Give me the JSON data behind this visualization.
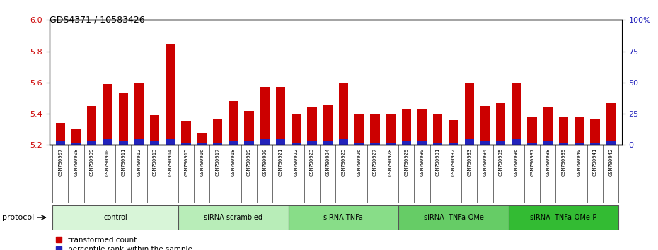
{
  "title": "GDS4371 / 10583426",
  "samples": [
    "GSM790907",
    "GSM790908",
    "GSM790909",
    "GSM790910",
    "GSM790911",
    "GSM790912",
    "GSM790913",
    "GSM790914",
    "GSM790915",
    "GSM790916",
    "GSM790917",
    "GSM790918",
    "GSM790919",
    "GSM790920",
    "GSM790921",
    "GSM790922",
    "GSM790923",
    "GSM790924",
    "GSM790925",
    "GSM790926",
    "GSM790927",
    "GSM790928",
    "GSM790929",
    "GSM790930",
    "GSM790931",
    "GSM790932",
    "GSM790933",
    "GSM790934",
    "GSM790935",
    "GSM790936",
    "GSM790937",
    "GSM790938",
    "GSM790939",
    "GSM790940",
    "GSM790941",
    "GSM790942"
  ],
  "red_values": [
    5.34,
    5.3,
    5.45,
    5.59,
    5.53,
    5.6,
    5.39,
    5.85,
    5.35,
    5.28,
    5.37,
    5.48,
    5.42,
    5.57,
    5.57,
    5.4,
    5.44,
    5.46,
    5.6,
    5.4,
    5.4,
    5.4,
    5.43,
    5.43,
    5.4,
    5.36,
    5.6,
    5.45,
    5.47,
    5.6,
    5.38,
    5.44,
    5.38,
    5.38,
    5.37,
    5.47
  ],
  "blue_values": [
    2,
    1,
    2,
    3,
    2,
    3,
    2,
    3,
    1,
    1,
    1,
    2,
    2,
    3,
    3,
    1,
    2,
    2,
    3,
    1,
    1,
    1,
    2,
    2,
    1,
    1,
    3,
    2,
    2,
    3,
    1,
    2,
    1,
    1,
    1,
    2
  ],
  "groups": [
    {
      "label": "control",
      "start": 0,
      "end": 7,
      "color": "#d8f5d8"
    },
    {
      "label": "siRNA scrambled",
      "start": 8,
      "end": 14,
      "color": "#b8edb8"
    },
    {
      "label": "siRNA TNFa",
      "start": 15,
      "end": 21,
      "color": "#88dd88"
    },
    {
      "label": "siRNA  TNFa-OMe",
      "start": 22,
      "end": 28,
      "color": "#66cc66"
    },
    {
      "label": "siRNA  TNFa-OMe-P",
      "start": 29,
      "end": 35,
      "color": "#33bb33"
    }
  ],
  "ylim_left": [
    5.2,
    6.0
  ],
  "ylim_right": [
    0,
    100
  ],
  "yticks_left": [
    5.2,
    5.4,
    5.6,
    5.8,
    6.0
  ],
  "yticks_right": [
    0,
    25,
    50,
    75,
    100
  ],
  "ytick_labels_right": [
    "0",
    "25",
    "50",
    "75",
    "100%"
  ],
  "bar_color_red": "#cc0000",
  "bar_color_blue": "#2222bb",
  "plot_bg": "#ffffff",
  "xtick_bg": "#d8d8d8",
  "protocol_label": "protocol",
  "legend_red": "transformed count",
  "legend_blue": "percentile rank within the sample"
}
